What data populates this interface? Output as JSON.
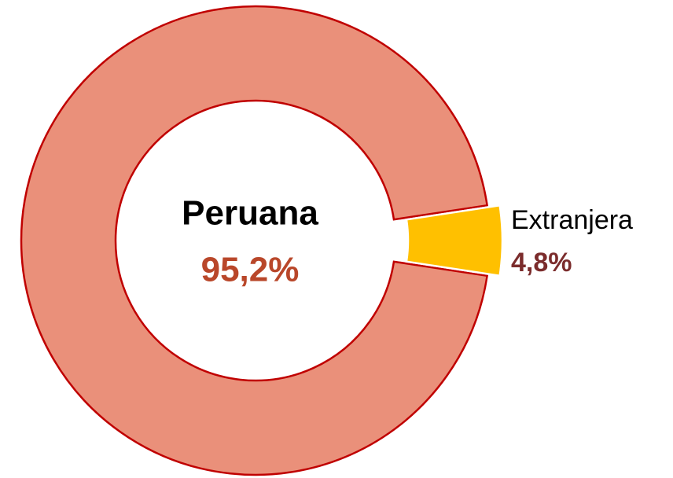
{
  "chart_data": {
    "type": "donut",
    "categories": [
      "Peruana",
      "Extranjera"
    ],
    "values": [
      95.2,
      4.8
    ],
    "value_labels": [
      "95,2%",
      "4,8%"
    ],
    "colors": [
      "#ea907a",
      "#ffc000"
    ]
  }
}
